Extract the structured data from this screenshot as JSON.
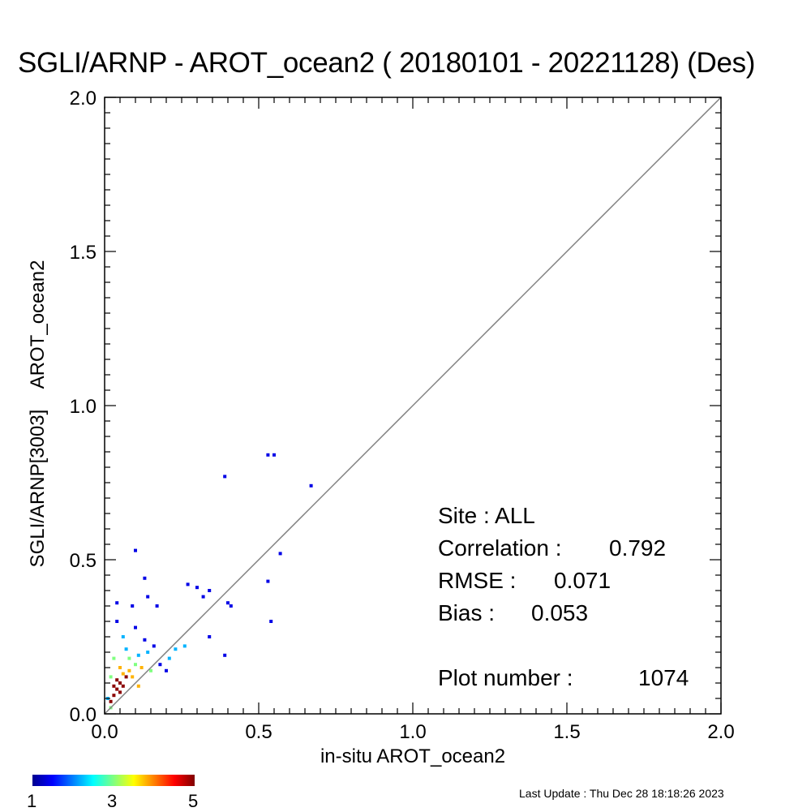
{
  "chart_data": {
    "type": "heatmap",
    "title": "SGLI/ARNP - AROT_ocean2 ( 20180101 - 20221128) (Des)",
    "xlabel": "in-situ AROT_ocean2",
    "ylabel": "SGLI/ARNP[3003]    AROT_ocean2",
    "xlim": [
      0.0,
      2.0
    ],
    "ylim": [
      0.0,
      2.0
    ],
    "x_ticks": [
      "0.0",
      "0.5",
      "1.0",
      "1.5",
      "2.0"
    ],
    "y_ticks": [
      "0.0",
      "0.5",
      "1.0",
      "1.5",
      "2.0"
    ],
    "reference_line": "1:1",
    "colorbar": {
      "min": 1,
      "max": 5,
      "tick_labels": [
        "1",
        "3",
        "5"
      ],
      "colormap": "jet"
    },
    "points": [
      {
        "x": 0.02,
        "y": 0.04,
        "count": 5
      },
      {
        "x": 0.03,
        "y": 0.06,
        "count": 5
      },
      {
        "x": 0.04,
        "y": 0.08,
        "count": 5
      },
      {
        "x": 0.05,
        "y": 0.1,
        "count": 5
      },
      {
        "x": 0.06,
        "y": 0.09,
        "count": 5
      },
      {
        "x": 0.04,
        "y": 0.11,
        "count": 5
      },
      {
        "x": 0.07,
        "y": 0.12,
        "count": 5
      },
      {
        "x": 0.03,
        "y": 0.09,
        "count": 5
      },
      {
        "x": 0.05,
        "y": 0.07,
        "count": 5
      },
      {
        "x": 0.06,
        "y": 0.13,
        "count": 4
      },
      {
        "x": 0.08,
        "y": 0.14,
        "count": 4
      },
      {
        "x": 0.09,
        "y": 0.12,
        "count": 4
      },
      {
        "x": 0.02,
        "y": 0.02,
        "count": 3
      },
      {
        "x": 0.1,
        "y": 0.16,
        "count": 3
      },
      {
        "x": 0.12,
        "y": 0.15,
        "count": 4
      },
      {
        "x": 0.11,
        "y": 0.19,
        "count": 2
      },
      {
        "x": 0.08,
        "y": 0.18,
        "count": 3
      },
      {
        "x": 0.07,
        "y": 0.21,
        "count": 2
      },
      {
        "x": 0.14,
        "y": 0.2,
        "count": 2
      },
      {
        "x": 0.16,
        "y": 0.22,
        "count": 1
      },
      {
        "x": 0.13,
        "y": 0.24,
        "count": 1
      },
      {
        "x": 0.06,
        "y": 0.25,
        "count": 2
      },
      {
        "x": 0.04,
        "y": 0.3,
        "count": 1
      },
      {
        "x": 0.03,
        "y": 0.18,
        "count": 3
      },
      {
        "x": 0.01,
        "y": 0.05,
        "count": 2
      },
      {
        "x": 0.15,
        "y": 0.14,
        "count": 3
      },
      {
        "x": 0.18,
        "y": 0.16,
        "count": 1
      },
      {
        "x": 0.2,
        "y": 0.14,
        "count": 1
      },
      {
        "x": 0.1,
        "y": 0.28,
        "count": 1
      },
      {
        "x": 0.09,
        "y": 0.35,
        "count": 1
      },
      {
        "x": 0.04,
        "y": 0.36,
        "count": 1
      },
      {
        "x": 0.14,
        "y": 0.38,
        "count": 1
      },
      {
        "x": 0.17,
        "y": 0.35,
        "count": 1
      },
      {
        "x": 0.1,
        "y": 0.53,
        "count": 1
      },
      {
        "x": 0.13,
        "y": 0.44,
        "count": 1
      },
      {
        "x": 0.27,
        "y": 0.42,
        "count": 1
      },
      {
        "x": 0.3,
        "y": 0.41,
        "count": 1
      },
      {
        "x": 0.32,
        "y": 0.38,
        "count": 1
      },
      {
        "x": 0.34,
        "y": 0.4,
        "count": 1
      },
      {
        "x": 0.4,
        "y": 0.36,
        "count": 1
      },
      {
        "x": 0.41,
        "y": 0.35,
        "count": 1
      },
      {
        "x": 0.39,
        "y": 0.19,
        "count": 1
      },
      {
        "x": 0.39,
        "y": 0.77,
        "count": 1
      },
      {
        "x": 0.53,
        "y": 0.84,
        "count": 1
      },
      {
        "x": 0.55,
        "y": 0.84,
        "count": 1
      },
      {
        "x": 0.67,
        "y": 0.74,
        "count": 1
      },
      {
        "x": 0.57,
        "y": 0.52,
        "count": 1
      },
      {
        "x": 0.53,
        "y": 0.43,
        "count": 1
      },
      {
        "x": 0.54,
        "y": 0.3,
        "count": 1
      },
      {
        "x": 0.34,
        "y": 0.25,
        "count": 1
      },
      {
        "x": 0.26,
        "y": 0.22,
        "count": 2
      },
      {
        "x": 0.23,
        "y": 0.21,
        "count": 2
      },
      {
        "x": 0.21,
        "y": 0.18,
        "count": 2
      },
      {
        "x": 0.11,
        "y": 0.09,
        "count": 4
      },
      {
        "x": 0.02,
        "y": 0.12,
        "count": 3
      },
      {
        "x": 0.05,
        "y": 0.15,
        "count": 4
      }
    ]
  },
  "stats": {
    "site_label": "Site : ALL",
    "correlation_label": "Correlation :",
    "correlation_value": "0.792",
    "rmse_label": "RMSE :",
    "rmse_value": "0.071",
    "bias_label": "Bias :",
    "bias_value": "0.053",
    "plot_number_label": "Plot number :",
    "plot_number_value": "1074"
  },
  "footer": {
    "last_update": "Last Update : Thu Dec 28 18:18:26 2023"
  },
  "colors": {
    "axis": "#000000",
    "reference_line": "#808080"
  }
}
